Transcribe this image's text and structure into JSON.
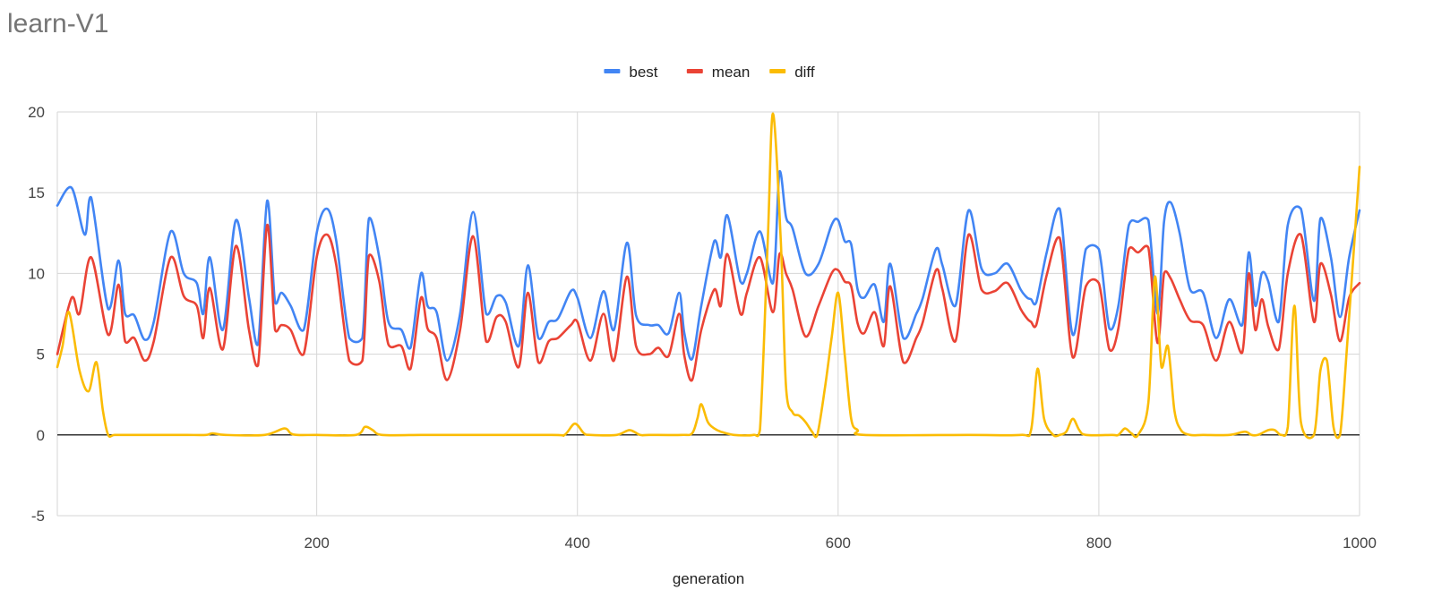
{
  "chart_data": {
    "type": "line",
    "title": "learn-V1",
    "xlabel": "generation",
    "ylabel": "",
    "xlim": [
      1,
      1000
    ],
    "ylim": [
      -5,
      20
    ],
    "x_ticks": [
      200,
      400,
      600,
      800,
      1000
    ],
    "y_ticks": [
      -5,
      0,
      5,
      10,
      15,
      20
    ],
    "grid": true,
    "legend": "top-center",
    "series": [
      {
        "name": "best",
        "color": "#4285F4",
        "x": [
          1,
          12,
          22,
          27,
          40,
          48,
          53,
          60,
          68,
          75,
          88,
          98,
          108,
          113,
          118,
          128,
          138,
          148,
          155,
          162,
          168,
          173,
          180,
          190,
          200,
          208,
          215,
          225,
          235,
          240,
          248,
          255,
          265,
          272,
          280,
          285,
          292,
          300,
          310,
          320,
          330,
          338,
          345,
          355,
          362,
          370,
          378,
          385,
          395,
          400,
          410,
          420,
          428,
          438,
          445,
          455,
          462,
          470,
          478,
          482,
          488,
          495,
          505,
          510,
          515,
          525,
          530,
          540,
          550,
          555,
          560,
          565,
          575,
          585,
          595,
          600,
          605,
          610,
          615,
          620,
          628,
          635,
          640,
          650,
          660,
          665,
          675,
          680,
          690,
          700,
          710,
          720,
          730,
          740,
          745,
          748,
          752,
          760,
          770,
          780,
          790,
          800,
          808,
          815,
          823,
          830,
          838,
          845,
          850,
          855,
          862,
          870,
          880,
          890,
          900,
          910,
          915,
          920,
          925,
          930,
          938,
          945,
          955,
          965,
          970,
          978,
          985,
          992,
          1000
        ],
        "values": [
          14.2,
          15.3,
          12.4,
          14.7,
          7.8,
          10.8,
          7.5,
          7.4,
          5.9,
          7.0,
          12.6,
          10.0,
          9.4,
          7.5,
          11.0,
          6.5,
          13.3,
          8.5,
          5.6,
          14.5,
          8.2,
          8.8,
          8.0,
          6.5,
          12.5,
          14.0,
          12.0,
          6.0,
          6.0,
          13.4,
          11.0,
          7.0,
          6.5,
          5.4,
          10.0,
          8.0,
          7.6,
          4.6,
          7.5,
          13.8,
          7.5,
          8.6,
          8.2,
          5.5,
          10.5,
          6.0,
          7.0,
          7.2,
          8.9,
          8.5,
          6.0,
          8.9,
          6.5,
          11.9,
          7.4,
          6.8,
          6.8,
          6.3,
          8.8,
          6.3,
          4.7,
          8.0,
          12.0,
          11.0,
          13.6,
          9.5,
          10.0,
          12.6,
          9.4,
          16.3,
          13.5,
          12.8,
          10.0,
          10.6,
          13.0,
          13.3,
          12.0,
          11.8,
          9.0,
          8.5,
          9.3,
          7.0,
          10.6,
          6.0,
          7.5,
          8.5,
          11.5,
          10.5,
          8.0,
          13.9,
          10.3,
          10.0,
          10.6,
          9.0,
          8.5,
          8.4,
          8.2,
          11.3,
          14.0,
          6.2,
          11.5,
          11.5,
          6.6,
          8.0,
          13.0,
          13.2,
          13.3,
          7.5,
          13.2,
          14.4,
          12.5,
          9.0,
          8.8,
          6.0,
          8.4,
          6.8,
          11.3,
          8.0,
          10.0,
          9.5,
          7.0,
          13.0,
          14.0,
          8.3,
          13.4,
          11.0,
          7.3,
          11.0,
          13.9
        ]
      },
      {
        "name": "mean",
        "color": "#EA4335",
        "x": [
          1,
          12,
          18,
          27,
          40,
          48,
          53,
          60,
          68,
          75,
          88,
          98,
          108,
          113,
          118,
          128,
          138,
          148,
          155,
          162,
          168,
          173,
          180,
          190,
          200,
          208,
          215,
          225,
          235,
          240,
          248,
          255,
          265,
          272,
          280,
          285,
          292,
          300,
          310,
          320,
          330,
          338,
          345,
          355,
          362,
          370,
          378,
          385,
          395,
          400,
          410,
          420,
          428,
          438,
          445,
          455,
          462,
          470,
          478,
          482,
          488,
          495,
          505,
          510,
          515,
          525,
          530,
          540,
          550,
          555,
          560,
          565,
          575,
          585,
          595,
          600,
          605,
          610,
          615,
          620,
          628,
          635,
          640,
          650,
          660,
          665,
          675,
          680,
          690,
          700,
          710,
          720,
          730,
          740,
          745,
          748,
          752,
          760,
          770,
          780,
          790,
          800,
          808,
          815,
          823,
          830,
          838,
          845,
          850,
          855,
          862,
          870,
          880,
          890,
          900,
          910,
          915,
          920,
          925,
          930,
          938,
          945,
          955,
          965,
          970,
          978,
          985,
          992,
          1000
        ],
        "values": [
          5.0,
          8.5,
          7.5,
          11.0,
          6.2,
          9.3,
          5.8,
          6.0,
          4.6,
          5.8,
          11.0,
          8.6,
          8.0,
          6.0,
          9.1,
          5.3,
          11.7,
          6.5,
          4.3,
          13.0,
          6.5,
          6.8,
          6.5,
          5.0,
          11.0,
          12.4,
          10.5,
          4.6,
          4.6,
          11.1,
          9.5,
          5.6,
          5.5,
          4.1,
          8.5,
          6.6,
          6.0,
          3.4,
          6.5,
          12.3,
          5.8,
          7.3,
          7.0,
          4.2,
          8.8,
          4.5,
          5.8,
          6.0,
          6.8,
          7.0,
          4.6,
          7.5,
          4.6,
          9.8,
          5.5,
          5.0,
          5.4,
          4.9,
          7.5,
          4.9,
          3.4,
          6.5,
          9.0,
          8.0,
          11.2,
          7.5,
          8.8,
          11.0,
          7.6,
          11.2,
          10.0,
          9.0,
          6.1,
          8.0,
          10.0,
          10.2,
          9.5,
          9.2,
          6.9,
          6.3,
          7.6,
          5.5,
          9.2,
          4.5,
          6.0,
          7.0,
          10.2,
          9.0,
          5.8,
          12.4,
          9.0,
          8.9,
          9.4,
          7.8,
          7.2,
          7.0,
          6.8,
          9.9,
          12.2,
          4.8,
          9.2,
          9.4,
          5.3,
          6.6,
          11.5,
          11.3,
          11.6,
          5.7,
          10.0,
          9.7,
          8.4,
          7.1,
          6.8,
          4.6,
          7.0,
          5.1,
          10.0,
          6.5,
          8.4,
          6.7,
          5.3,
          10.0,
          12.4,
          7.0,
          10.6,
          8.7,
          5.8,
          8.5,
          9.4
        ]
      },
      {
        "name": "diff",
        "color": "#FBBC04",
        "x": [
          1,
          5,
          10,
          18,
          25,
          31,
          36,
          40,
          45,
          60,
          80,
          100,
          115,
          120,
          130,
          160,
          175,
          180,
          185,
          200,
          230,
          237,
          243,
          250,
          280,
          300,
          380,
          390,
          398,
          405,
          410,
          430,
          440,
          448,
          455,
          480,
          488,
          492,
          495,
          500,
          505,
          510,
          520,
          535,
          540,
          546,
          550,
          556,
          560,
          565,
          570,
          575,
          580,
          584,
          590,
          595,
          600,
          605,
          610,
          615,
          620,
          700,
          740,
          748,
          753,
          758,
          765,
          770,
          775,
          780,
          785,
          790,
          810,
          815,
          820,
          825,
          830,
          838,
          843,
          848,
          853,
          858,
          863,
          870,
          880,
          900,
          912,
          917,
          922,
          930,
          935,
          940,
          945,
          950,
          955,
          965,
          970,
          975,
          980,
          985,
          990,
          1000
        ],
        "values": [
          4.2,
          5.5,
          7.6,
          4.0,
          2.7,
          4.5,
          1.5,
          0.0,
          0.0,
          0.0,
          0.0,
          0.0,
          0.0,
          0.1,
          0.0,
          0.0,
          0.4,
          0.1,
          0.0,
          0.0,
          0.0,
          0.5,
          0.3,
          0.0,
          0.0,
          0.0,
          0.0,
          0.0,
          0.7,
          0.1,
          0.0,
          0.0,
          0.3,
          0.0,
          0.0,
          0.0,
          0.1,
          1.0,
          1.9,
          0.8,
          0.4,
          0.2,
          0.0,
          0.0,
          0.3,
          12.0,
          19.9,
          12.0,
          3.0,
          1.4,
          1.2,
          0.8,
          0.2,
          0.0,
          3.0,
          6.0,
          8.8,
          5.0,
          1.0,
          0.3,
          0.0,
          0.0,
          0.0,
          0.3,
          4.1,
          1.0,
          0.0,
          0.0,
          0.2,
          1.0,
          0.3,
          0.0,
          0.0,
          0.0,
          0.4,
          0.1,
          0.0,
          2.0,
          9.8,
          4.2,
          5.5,
          1.5,
          0.3,
          0.0,
          0.0,
          0.0,
          0.2,
          0.0,
          0.0,
          0.3,
          0.3,
          0.0,
          0.5,
          8.0,
          0.8,
          0.0,
          4.0,
          4.6,
          0.5,
          0.0,
          5.0,
          16.6
        ]
      }
    ]
  }
}
